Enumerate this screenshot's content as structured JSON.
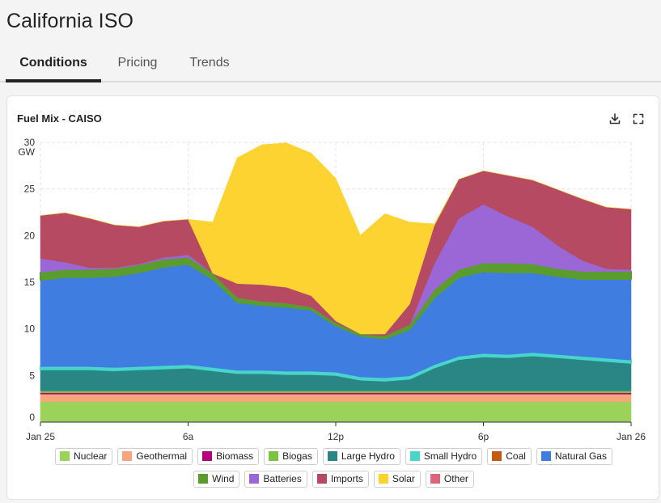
{
  "header": {
    "title": "California ISO"
  },
  "tabs": [
    {
      "label": "Conditions",
      "active": true
    },
    {
      "label": "Pricing",
      "active": false
    },
    {
      "label": "Trends",
      "active": false
    }
  ],
  "card": {
    "title": "Fuel Mix - CAISO",
    "download_icon": "download-icon",
    "fullscreen_icon": "fullscreen-icon"
  },
  "chart_data": {
    "type": "area",
    "stacked": true,
    "ylabel": "GW",
    "ylim": [
      0,
      30
    ],
    "yticks": [
      0,
      5,
      10,
      15,
      20,
      25,
      30
    ],
    "xlim": [
      0,
      24
    ],
    "xticks": [
      {
        "x": 0,
        "label": "Jan 25"
      },
      {
        "x": 6,
        "label": "6a"
      },
      {
        "x": 12,
        "label": "12p"
      },
      {
        "x": 18,
        "label": "6p"
      },
      {
        "x": 24,
        "label": "Jan 26"
      }
    ],
    "grid": true,
    "legend_position": "bottom",
    "x": [
      0,
      1,
      2,
      3,
      4,
      5,
      6,
      7,
      8,
      9,
      10,
      11,
      12,
      13,
      14,
      15,
      16,
      17,
      18,
      19,
      20,
      21,
      22,
      23,
      24
    ],
    "series": [
      {
        "name": "Nuclear",
        "color": "#9bd35a",
        "values": [
          2.2,
          2.2,
          2.2,
          2.2,
          2.2,
          2.2,
          2.2,
          2.2,
          2.2,
          2.2,
          2.2,
          2.2,
          2.2,
          2.2,
          2.2,
          2.2,
          2.2,
          2.2,
          2.2,
          2.2,
          2.2,
          2.2,
          2.2,
          2.2,
          2.2
        ]
      },
      {
        "name": "Geothermal",
        "color": "#f7a57c",
        "values": [
          0.8,
          0.8,
          0.8,
          0.8,
          0.8,
          0.8,
          0.8,
          0.8,
          0.8,
          0.8,
          0.8,
          0.8,
          0.8,
          0.8,
          0.8,
          0.8,
          0.8,
          0.8,
          0.8,
          0.8,
          0.8,
          0.8,
          0.8,
          0.8,
          0.8
        ]
      },
      {
        "name": "Biomass",
        "color": "#b5007f",
        "values": [
          0.15,
          0.15,
          0.15,
          0.15,
          0.15,
          0.15,
          0.15,
          0.15,
          0.15,
          0.15,
          0.15,
          0.15,
          0.15,
          0.15,
          0.15,
          0.15,
          0.15,
          0.15,
          0.15,
          0.15,
          0.15,
          0.15,
          0.15,
          0.15,
          0.15
        ]
      },
      {
        "name": "Biogas",
        "color": "#7dc242",
        "values": [
          0.2,
          0.2,
          0.2,
          0.2,
          0.2,
          0.2,
          0.2,
          0.2,
          0.2,
          0.2,
          0.2,
          0.2,
          0.2,
          0.2,
          0.2,
          0.2,
          0.2,
          0.2,
          0.2,
          0.2,
          0.2,
          0.2,
          0.2,
          0.2,
          0.2
        ]
      },
      {
        "name": "Large Hydro",
        "color": "#2a8585",
        "values": [
          2.3,
          2.3,
          2.3,
          2.2,
          2.3,
          2.4,
          2.5,
          2.2,
          1.9,
          1.9,
          1.8,
          1.8,
          1.7,
          1.2,
          1.1,
          1.3,
          2.5,
          3.4,
          3.7,
          3.6,
          3.8,
          3.6,
          3.4,
          3.2,
          3.0
        ]
      },
      {
        "name": "Small Hydro",
        "color": "#48d6cc",
        "values": [
          0.3,
          0.3,
          0.3,
          0.3,
          0.3,
          0.3,
          0.3,
          0.3,
          0.3,
          0.3,
          0.3,
          0.3,
          0.3,
          0.3,
          0.3,
          0.3,
          0.3,
          0.3,
          0.3,
          0.3,
          0.3,
          0.3,
          0.3,
          0.3,
          0.3
        ]
      },
      {
        "name": "Coal",
        "color": "#c35a10",
        "values": [
          0,
          0,
          0,
          0,
          0,
          0,
          0,
          0,
          0,
          0,
          0,
          0,
          0,
          0,
          0,
          0,
          0,
          0,
          0,
          0,
          0,
          0,
          0,
          0,
          0
        ]
      },
      {
        "name": "Natural Gas",
        "color": "#3f7de0",
        "values": [
          9.3,
          9.6,
          9.6,
          9.8,
          10.1,
          10.6,
          10.8,
          9.5,
          7.3,
          7.0,
          6.9,
          6.6,
          5.0,
          4.4,
          4.2,
          5.0,
          7.2,
          8.5,
          8.8,
          8.8,
          8.6,
          8.4,
          8.3,
          8.5,
          8.7
        ]
      },
      {
        "name": "Wind",
        "color": "#5a9d2e",
        "values": [
          0.8,
          0.8,
          0.8,
          0.8,
          0.8,
          0.8,
          0.7,
          0.6,
          0.5,
          0.4,
          0.4,
          0.3,
          0.3,
          0.2,
          0.3,
          0.5,
          0.8,
          0.8,
          0.9,
          1.0,
          0.9,
          0.8,
          0.8,
          0.8,
          0.8
        ]
      },
      {
        "name": "Batteries",
        "color": "#9b66d6",
        "values": [
          1.5,
          0.8,
          0.2,
          0.1,
          0.1,
          0.2,
          0.3,
          0,
          0,
          0,
          0,
          0,
          0,
          0,
          0,
          0,
          2.8,
          5.5,
          6.3,
          5.0,
          4.0,
          2.5,
          1.2,
          0.3,
          0.2
        ]
      },
      {
        "name": "Imports",
        "color": "#b54a62",
        "values": [
          4.6,
          5.3,
          5.3,
          4.6,
          4.0,
          3.9,
          3.8,
          0,
          1.5,
          1.8,
          1.7,
          1.2,
          0.2,
          0,
          0.2,
          2.2,
          4.1,
          4.2,
          3.6,
          4.4,
          5.0,
          6.0,
          6.6,
          6.6,
          6.5
        ]
      },
      {
        "name": "Solar",
        "color": "#fdd332",
        "values": [
          0,
          0,
          0,
          0,
          0,
          0,
          0,
          5.5,
          13.5,
          15.0,
          15.5,
          15.3,
          15.3,
          10.6,
          12.9,
          8.8,
          0.2,
          0,
          0,
          0,
          0,
          0,
          0,
          0,
          0
        ]
      },
      {
        "name": "Other",
        "color": "#d9667a",
        "values": [
          0,
          0,
          0,
          0,
          0,
          0,
          0,
          0,
          0,
          0,
          0,
          0,
          0,
          0,
          0,
          0,
          0,
          0,
          0,
          0,
          0,
          0,
          0,
          0,
          0
        ]
      }
    ]
  }
}
